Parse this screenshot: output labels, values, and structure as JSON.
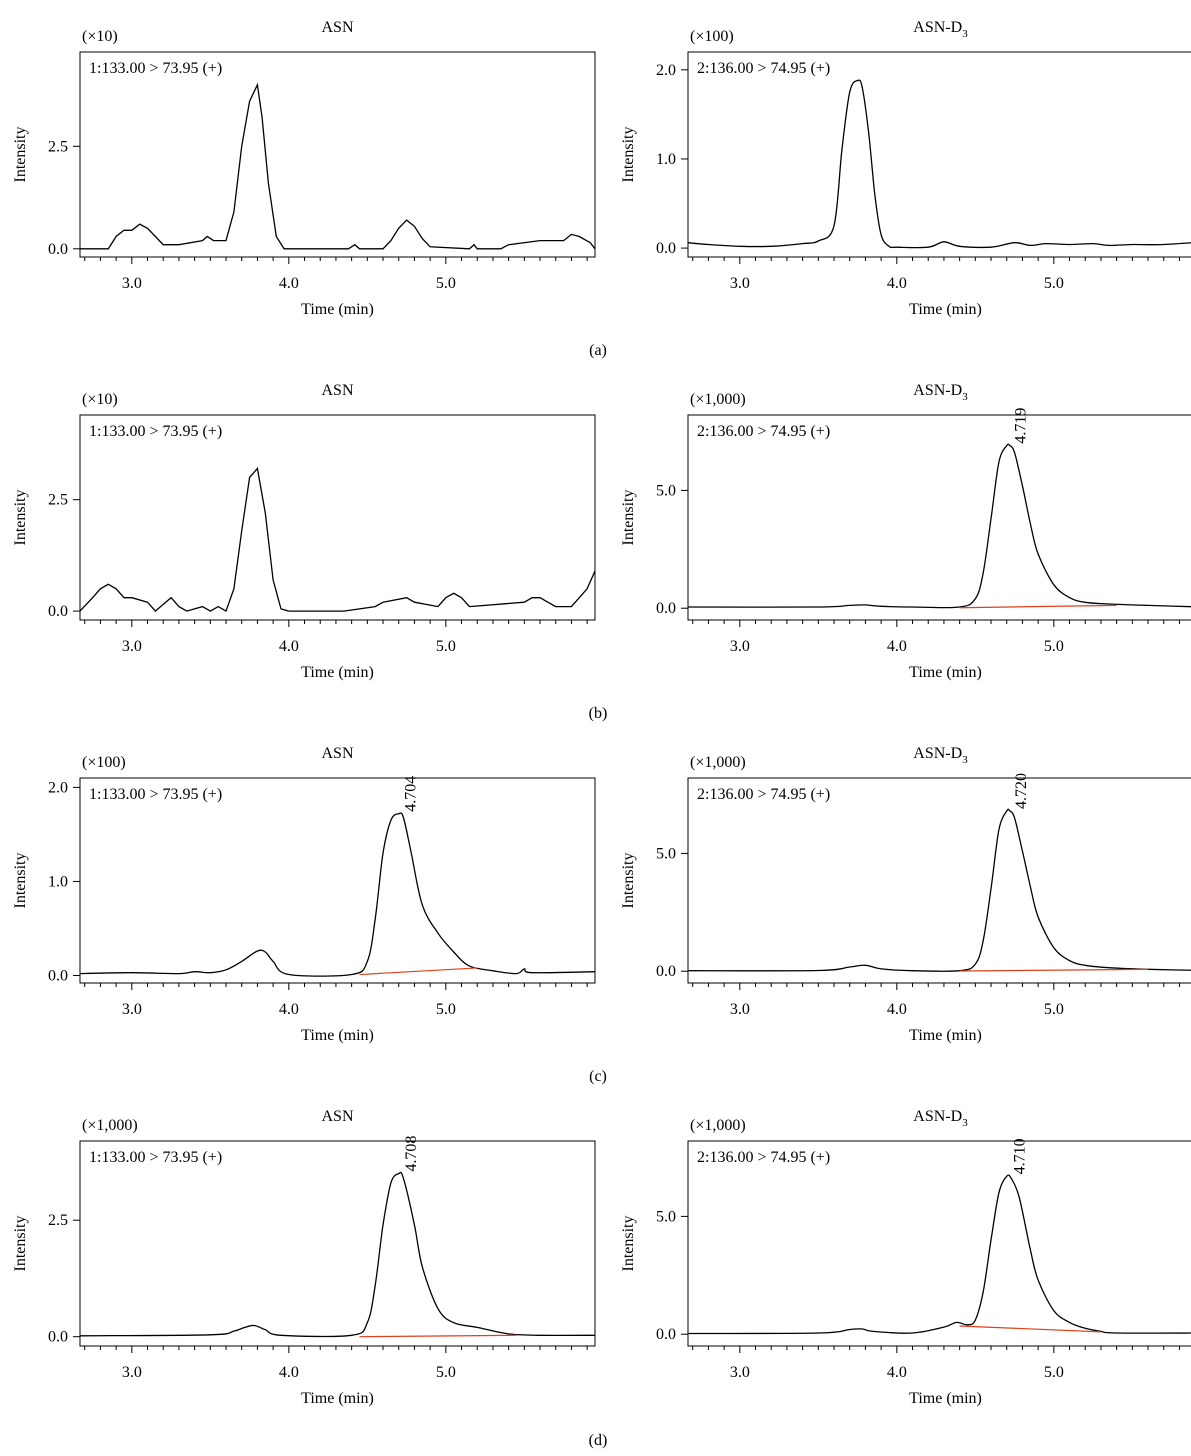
{
  "figure": {
    "y_axis_label": "Intensity",
    "x_axis_label": "Time (min)",
    "x_ticks": [
      "3.0",
      "4.0",
      "5.0"
    ],
    "rows": [
      {
        "caption": "(a)"
      },
      {
        "caption": "(b)"
      },
      {
        "caption": "(c)"
      },
      {
        "caption": "(d)"
      }
    ]
  },
  "colors": {
    "trace": "#000000",
    "baseline": "#e0401a",
    "axis": "#000000"
  },
  "chart_data": [
    {
      "panel": "a-left",
      "type": "line",
      "title": "ASN",
      "title_sub": "",
      "scale_label": "(×10)",
      "transition": "1:133.00 > 73.95 (+)",
      "xlabel": "Time (min)",
      "ylabel": "Intensity",
      "xlim": [
        2.67,
        5.95
      ],
      "ylim": [
        -0.2,
        4.8
      ],
      "y_ticks": [
        {
          "v": 0.0,
          "label": "0.0"
        },
        {
          "v": 2.5,
          "label": "2.5"
        }
      ],
      "x_ticks": [
        3.0,
        4.0,
        5.0
      ],
      "style": "step",
      "series": [
        {
          "x": [
            2.67,
            2.85,
            2.9,
            2.95,
            3.0,
            3.05,
            3.1,
            3.15,
            3.2,
            3.3,
            3.45,
            3.48,
            3.52,
            3.55,
            3.6,
            3.65,
            3.7,
            3.75,
            3.8,
            3.83,
            3.87,
            3.92,
            3.97,
            4.0,
            4.38,
            4.42,
            4.45,
            4.6,
            4.65,
            4.7,
            4.75,
            4.8,
            4.85,
            4.9,
            5.15,
            5.18,
            5.2,
            5.35,
            5.4,
            5.6,
            5.75,
            5.8,
            5.85,
            5.92,
            5.95
          ],
          "y": [
            0.0,
            0.0,
            0.3,
            0.45,
            0.45,
            0.6,
            0.5,
            0.3,
            0.1,
            0.1,
            0.2,
            0.3,
            0.2,
            0.2,
            0.2,
            0.9,
            2.5,
            3.6,
            4.0,
            3.2,
            1.6,
            0.3,
            0.0,
            0.0,
            0.0,
            0.1,
            0.0,
            0.0,
            0.2,
            0.5,
            0.7,
            0.55,
            0.25,
            0.05,
            0.0,
            0.1,
            0.0,
            0.0,
            0.1,
            0.2,
            0.2,
            0.35,
            0.3,
            0.15,
            0.0
          ]
        }
      ],
      "peak_label": null,
      "integration_baseline": null
    },
    {
      "panel": "a-right",
      "type": "line",
      "title": "ASN-D",
      "title_sub": "3",
      "scale_label": "(×100)",
      "transition": "2:136.00 > 74.95 (+)",
      "xlabel": "Time (min)",
      "ylabel": "Intensity",
      "xlim": [
        2.67,
        5.95
      ],
      "ylim": [
        -0.1,
        2.2
      ],
      "y_ticks": [
        {
          "v": 0.0,
          "label": "0.0"
        },
        {
          "v": 1.0,
          "label": "1.0"
        },
        {
          "v": 2.0,
          "label": "2.0"
        }
      ],
      "x_ticks": [
        3.0,
        4.0,
        5.0
      ],
      "style": "smooth",
      "series": [
        {
          "x": [
            2.67,
            2.8,
            3.0,
            3.2,
            3.4,
            3.5,
            3.6,
            3.65,
            3.7,
            3.75,
            3.78,
            3.82,
            3.86,
            3.9,
            3.95,
            4.0,
            4.2,
            4.3,
            4.4,
            4.6,
            4.75,
            4.85,
            4.95,
            5.1,
            5.25,
            5.35,
            5.5,
            5.7,
            5.95
          ],
          "y": [
            0.06,
            0.04,
            0.02,
            0.02,
            0.05,
            0.08,
            0.25,
            1.1,
            1.75,
            1.88,
            1.8,
            1.3,
            0.6,
            0.15,
            0.02,
            0.01,
            0.01,
            0.07,
            0.02,
            0.01,
            0.06,
            0.03,
            0.05,
            0.04,
            0.05,
            0.03,
            0.04,
            0.04,
            0.07
          ]
        }
      ],
      "peak_label": null,
      "integration_baseline": null
    },
    {
      "panel": "b-left",
      "type": "line",
      "title": "ASN",
      "title_sub": "",
      "scale_label": "(×10)",
      "transition": "1:133.00 > 73.95 (+)",
      "xlabel": "Time (min)",
      "ylabel": "Intensity",
      "xlim": [
        2.67,
        5.95
      ],
      "ylim": [
        -0.2,
        4.4
      ],
      "y_ticks": [
        {
          "v": 0.0,
          "label": "0.0"
        },
        {
          "v": 2.5,
          "label": "2.5"
        }
      ],
      "x_ticks": [
        3.0,
        4.0,
        5.0
      ],
      "style": "step",
      "series": [
        {
          "x": [
            2.67,
            2.75,
            2.8,
            2.85,
            2.9,
            2.95,
            3.0,
            3.1,
            3.15,
            3.2,
            3.25,
            3.3,
            3.35,
            3.45,
            3.5,
            3.55,
            3.6,
            3.65,
            3.7,
            3.75,
            3.8,
            3.85,
            3.9,
            3.95,
            4.0,
            4.35,
            4.55,
            4.6,
            4.75,
            4.8,
            4.95,
            5.0,
            5.05,
            5.1,
            5.15,
            5.5,
            5.55,
            5.6,
            5.65,
            5.7,
            5.8,
            5.85,
            5.9,
            5.95
          ],
          "y": [
            0.0,
            0.3,
            0.5,
            0.6,
            0.5,
            0.3,
            0.3,
            0.2,
            0.0,
            0.15,
            0.3,
            0.1,
            0.0,
            0.1,
            0.0,
            0.1,
            0.0,
            0.5,
            1.8,
            3.0,
            3.2,
            2.2,
            0.7,
            0.05,
            0.0,
            0.0,
            0.1,
            0.2,
            0.3,
            0.2,
            0.1,
            0.3,
            0.4,
            0.3,
            0.1,
            0.2,
            0.3,
            0.3,
            0.2,
            0.1,
            0.1,
            0.3,
            0.5,
            0.9
          ]
        }
      ],
      "peak_label": null,
      "integration_baseline": null
    },
    {
      "panel": "b-right",
      "type": "line",
      "title": "ASN-D",
      "title_sub": "3",
      "scale_label": "(×1,000)",
      "transition": "2:136.00 > 74.95 (+)",
      "xlabel": "Time (min)",
      "ylabel": "Intensity",
      "xlim": [
        2.67,
        5.95
      ],
      "ylim": [
        -0.5,
        8.2
      ],
      "y_ticks": [
        {
          "v": 0.0,
          "label": "0.0"
        },
        {
          "v": 5.0,
          "label": "5.0"
        }
      ],
      "x_ticks": [
        3.0,
        4.0,
        5.0
      ],
      "style": "smooth",
      "series": [
        {
          "x": [
            2.67,
            3.5,
            3.7,
            3.8,
            3.9,
            4.1,
            4.4,
            4.5,
            4.55,
            4.6,
            4.65,
            4.7,
            4.72,
            4.75,
            4.8,
            4.85,
            4.9,
            5.0,
            5.1,
            5.2,
            5.35,
            5.6,
            5.95
          ],
          "y": [
            0.05,
            0.05,
            0.12,
            0.14,
            0.08,
            0.05,
            0.05,
            0.4,
            1.5,
            3.8,
            6.2,
            6.9,
            6.9,
            6.6,
            5.2,
            3.6,
            2.3,
            1.0,
            0.45,
            0.25,
            0.18,
            0.12,
            0.05
          ]
        }
      ],
      "peak_label": "4.719",
      "peak_x": 4.719,
      "integration_baseline": [
        [
          4.4,
          0.02
        ],
        [
          5.4,
          0.12
        ]
      ]
    },
    {
      "panel": "c-left",
      "type": "line",
      "title": "ASN",
      "title_sub": "",
      "scale_label": "(×100)",
      "transition": "1:133.00 > 73.95 (+)",
      "xlabel": "Time (min)",
      "ylabel": "Intensity",
      "xlim": [
        2.67,
        5.95
      ],
      "ylim": [
        -0.08,
        2.1
      ],
      "y_ticks": [
        {
          "v": 0.0,
          "label": "0.0"
        },
        {
          "v": 1.0,
          "label": "1.0"
        },
        {
          "v": 2.0,
          "label": "2.0"
        }
      ],
      "x_ticks": [
        3.0,
        4.0,
        5.0
      ],
      "style": "smooth",
      "series": [
        {
          "x": [
            2.67,
            3.0,
            3.3,
            3.4,
            3.5,
            3.6,
            3.7,
            3.8,
            3.85,
            3.9,
            4.0,
            4.4,
            4.5,
            4.55,
            4.6,
            4.65,
            4.7,
            4.73,
            4.78,
            4.85,
            4.95,
            5.05,
            5.15,
            5.3,
            5.45,
            5.5,
            5.55,
            5.95
          ],
          "y": [
            0.02,
            0.03,
            0.02,
            0.04,
            0.03,
            0.06,
            0.15,
            0.26,
            0.25,
            0.15,
            0.01,
            0.01,
            0.15,
            0.6,
            1.3,
            1.65,
            1.72,
            1.68,
            1.3,
            0.75,
            0.45,
            0.25,
            0.1,
            0.05,
            0.02,
            0.07,
            0.03,
            0.04
          ]
        }
      ],
      "peak_label": "4.704",
      "peak_x": 4.704,
      "integration_baseline": [
        [
          4.45,
          0.01
        ],
        [
          5.2,
          0.08
        ]
      ]
    },
    {
      "panel": "c-right",
      "type": "line",
      "title": "ASN-D",
      "title_sub": "3",
      "scale_label": "(×1,000)",
      "transition": "2:136.00 > 74.95 (+)",
      "xlabel": "Time (min)",
      "ylabel": "Intensity",
      "xlim": [
        2.67,
        5.95
      ],
      "ylim": [
        -0.5,
        8.2
      ],
      "y_ticks": [
        {
          "v": 0.0,
          "label": "0.0"
        },
        {
          "v": 5.0,
          "label": "5.0"
        }
      ],
      "x_ticks": [
        3.0,
        4.0,
        5.0
      ],
      "style": "smooth",
      "series": [
        {
          "x": [
            2.67,
            3.5,
            3.7,
            3.8,
            3.9,
            4.1,
            4.4,
            4.5,
            4.55,
            4.6,
            4.65,
            4.7,
            4.72,
            4.75,
            4.8,
            4.85,
            4.9,
            5.0,
            5.1,
            5.2,
            5.35,
            5.6,
            5.95
          ],
          "y": [
            0.02,
            0.03,
            0.18,
            0.25,
            0.1,
            0.02,
            0.02,
            0.3,
            1.3,
            3.5,
            6.0,
            6.8,
            6.8,
            6.5,
            5.1,
            3.6,
            2.3,
            1.0,
            0.45,
            0.25,
            0.15,
            0.08,
            0.03
          ]
        }
      ],
      "peak_label": "4.720",
      "peak_x": 4.72,
      "integration_baseline": [
        [
          4.4,
          0.01
        ],
        [
          5.6,
          0.08
        ]
      ]
    },
    {
      "panel": "d-left",
      "type": "line",
      "title": "ASN",
      "title_sub": "",
      "scale_label": "(×1,000)",
      "transition": "1:133.00 > 73.95 (+)",
      "xlabel": "Time (min)",
      "ylabel": "Intensity",
      "xlim": [
        2.67,
        5.95
      ],
      "ylim": [
        -0.2,
        4.2
      ],
      "y_ticks": [
        {
          "v": 0.0,
          "label": "0.0"
        },
        {
          "v": 2.5,
          "label": "2.5"
        }
      ],
      "x_ticks": [
        3.0,
        4.0,
        5.0
      ],
      "style": "smooth",
      "series": [
        {
          "x": [
            2.67,
            3.5,
            3.65,
            3.72,
            3.78,
            3.85,
            3.95,
            4.4,
            4.5,
            4.55,
            4.6,
            4.65,
            4.7,
            4.73,
            4.8,
            4.85,
            4.95,
            5.05,
            5.2,
            5.4,
            5.6,
            5.95
          ],
          "y": [
            0.02,
            0.04,
            0.12,
            0.2,
            0.24,
            0.15,
            0.03,
            0.03,
            0.3,
            1.1,
            2.4,
            3.3,
            3.5,
            3.4,
            2.4,
            1.5,
            0.6,
            0.3,
            0.2,
            0.06,
            0.03,
            0.03
          ]
        }
      ],
      "peak_label": "4.708",
      "peak_x": 4.708,
      "integration_baseline": [
        [
          4.45,
          0.0
        ],
        [
          5.45,
          0.03
        ]
      ]
    },
    {
      "panel": "d-right",
      "type": "line",
      "title": "ASN-D",
      "title_sub": "3",
      "scale_label": "(×1,000)",
      "transition": "2:136.00 > 74.95 (+)",
      "xlabel": "Time (min)",
      "ylabel": "Intensity",
      "xlim": [
        2.67,
        5.95
      ],
      "ylim": [
        -0.5,
        8.2
      ],
      "y_ticks": [
        {
          "v": 0.0,
          "label": "0.0"
        },
        {
          "v": 5.0,
          "label": "5.0"
        }
      ],
      "x_ticks": [
        3.0,
        4.0,
        5.0
      ],
      "style": "smooth",
      "series": [
        {
          "x": [
            2.67,
            3.5,
            3.7,
            3.78,
            3.85,
            4.1,
            4.3,
            4.38,
            4.45,
            4.5,
            4.55,
            4.6,
            4.65,
            4.7,
            4.73,
            4.78,
            4.85,
            4.9,
            5.0,
            5.1,
            5.2,
            5.3,
            5.4,
            5.95
          ],
          "y": [
            0.03,
            0.05,
            0.2,
            0.22,
            0.12,
            0.05,
            0.3,
            0.5,
            0.4,
            0.6,
            1.8,
            4.0,
            6.0,
            6.7,
            6.6,
            5.8,
            3.6,
            2.3,
            1.0,
            0.5,
            0.25,
            0.12,
            0.05,
            0.05
          ]
        }
      ],
      "peak_label": "4.710",
      "peak_x": 4.71,
      "integration_baseline": [
        [
          4.4,
          0.35
        ],
        [
          5.3,
          0.1
        ]
      ]
    }
  ]
}
